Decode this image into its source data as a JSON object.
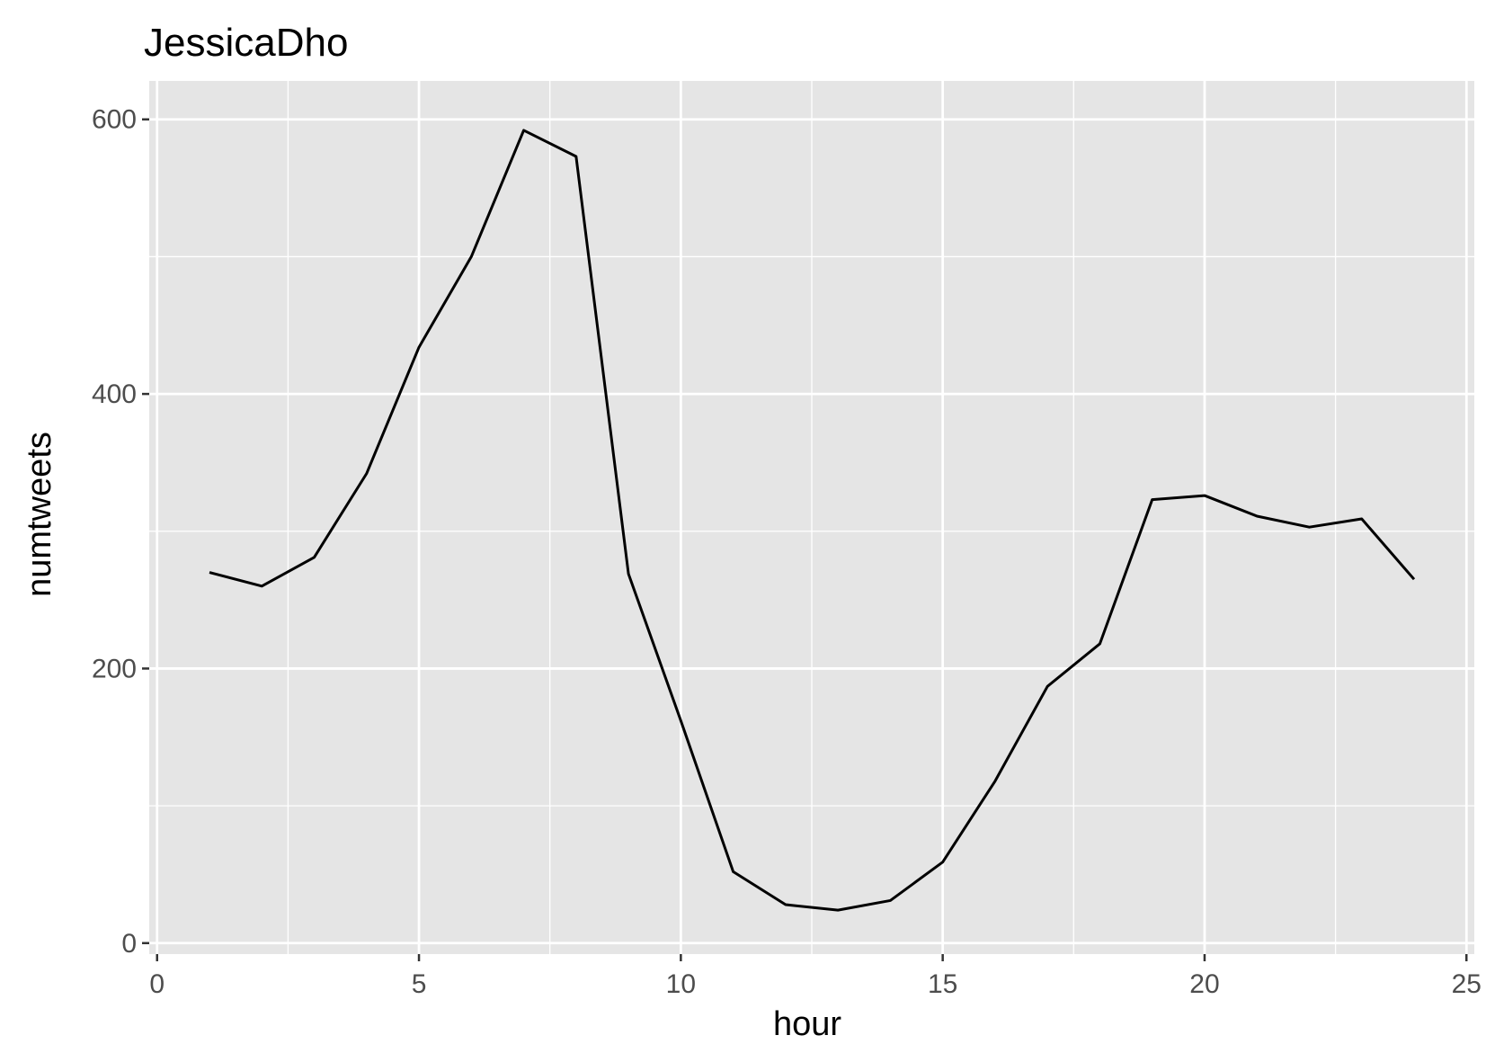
{
  "chart_data": {
    "type": "line",
    "title": "JessicaDho",
    "xlabel": "hour",
    "ylabel": "numtweets",
    "xlim": [
      -0.15,
      25.15
    ],
    "ylim": [
      -8,
      628
    ],
    "x_major_ticks": [
      0,
      5,
      10,
      15,
      20,
      25
    ],
    "x_minor_ticks": [
      2.5,
      7.5,
      12.5,
      17.5,
      22.5
    ],
    "y_major_ticks": [
      0,
      200,
      400,
      600
    ],
    "y_minor_ticks": [
      100,
      300,
      500
    ],
    "grid": true,
    "colors": {
      "panel": "#e5e5e5",
      "grid": "#ffffff",
      "line": "#000000",
      "tick": "#333333"
    },
    "x": [
      1,
      2,
      3,
      4,
      5,
      6,
      7,
      8,
      9,
      10,
      11,
      12,
      13,
      14,
      15,
      16,
      17,
      18,
      19,
      20,
      21,
      22,
      23,
      24
    ],
    "y": [
      270,
      260,
      281,
      342,
      434,
      500,
      592,
      573,
      269,
      162,
      52,
      28,
      24,
      31,
      59,
      118,
      187,
      218,
      323,
      326,
      311,
      303,
      309,
      265
    ]
  }
}
